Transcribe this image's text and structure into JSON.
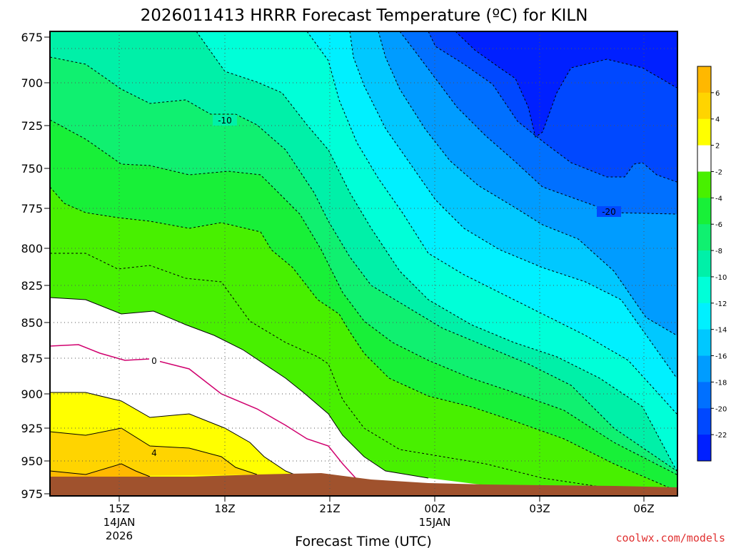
{
  "chart_data": {
    "type": "contour",
    "title": "2026011413 HRRR Forecast Temperature (ºC) for KILN",
    "xlabel": "Forecast Time (UTC)",
    "ylabel": "",
    "credit": "coolwx.com/models",
    "y_axis": {
      "ticks": [
        "675",
        "700",
        "725",
        "750",
        "775",
        "800",
        "825",
        "850",
        "875",
        "900",
        "925",
        "950",
        "975"
      ],
      "range": [
        675,
        975
      ],
      "inverted": true
    },
    "x_axis": {
      "ticks": [
        {
          "hour": "15Z",
          "date": "14JAN",
          "year": "2026"
        },
        {
          "hour": "18Z",
          "date": "",
          "year": ""
        },
        {
          "hour": "21Z",
          "date": "",
          "year": ""
        },
        {
          "hour": "00Z",
          "date": "15JAN",
          "year": ""
        },
        {
          "hour": "03Z",
          "date": "",
          "year": ""
        },
        {
          "hour": "06Z",
          "date": "",
          "year": ""
        }
      ]
    },
    "grid": true,
    "contour_labels": [
      "-10",
      "-20",
      "0",
      "4"
    ],
    "colorbar": {
      "levels": [
        "6",
        "4",
        "2",
        "-2",
        "-4",
        "-6",
        "-8",
        "-10",
        "-12",
        "-14",
        "-16",
        "-18",
        "-20",
        "-22"
      ],
      "colors": [
        "#ffb800",
        "#ffd400",
        "#ffff00",
        "#ffffff",
        "#48f000",
        "#18f038",
        "#10f070",
        "#00f0a8",
        "#00ffd8",
        "#00f0ff",
        "#00c8ff",
        "#009cff",
        "#0070ff",
        "#0048ff",
        "#0020ff"
      ]
    },
    "colors": {
      "frost_line": "#d0006e",
      "terrain": "#a0522d"
    }
  }
}
